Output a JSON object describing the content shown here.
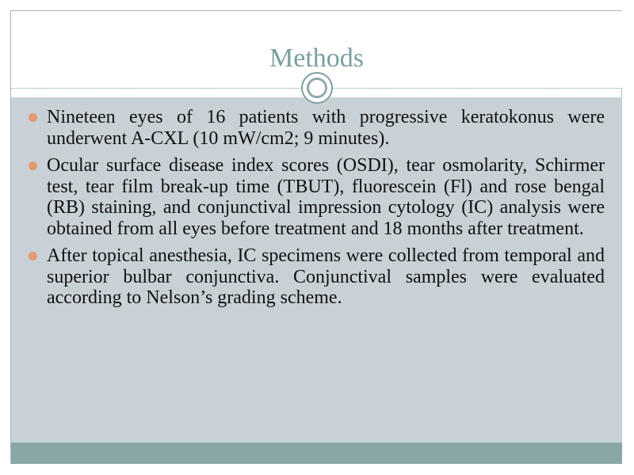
{
  "slide": {
    "title": "Methods",
    "bullets": [
      {
        "text": "Nineteen eyes of 16 patients with progressive keratokonus were underwent A-CXL (10 mW/cm2; 9 minutes)."
      },
      {
        "text": "Ocular surface disease index scores (OSDI), tear osmolarity, Schirmer test, tear film break-up time (TBUT), fluorescein (Fl) and rose bengal (RB) staining, and conjunctival impression cytology (IC) analysis were obtained from all eyes before treatment and 18 months after treatment."
      },
      {
        "text": "After topical anesthesia, IC specimens were collected from temporal and superior bulbar conjunctiva. Conjunctival samples were evaluated according to Nelson’s grading scheme."
      }
    ]
  },
  "theme": {
    "title_color": "#7a9ea0",
    "content_background": "#c7d1d6",
    "footer_color": "#8aa7a8",
    "bullet_color": "#e39a6e"
  }
}
